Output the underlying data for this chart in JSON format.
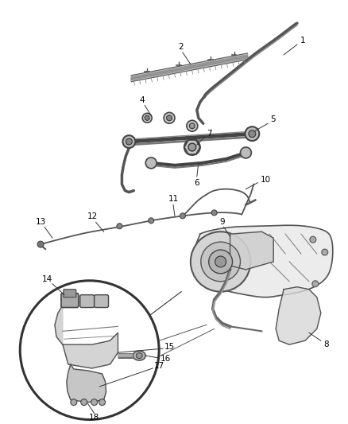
{
  "bg_color": "#ffffff",
  "fig_width": 4.38,
  "fig_height": 5.33,
  "dpi": 100,
  "line_color": "#444444",
  "label_color": "#000000",
  "label_fontsize": 7.5
}
